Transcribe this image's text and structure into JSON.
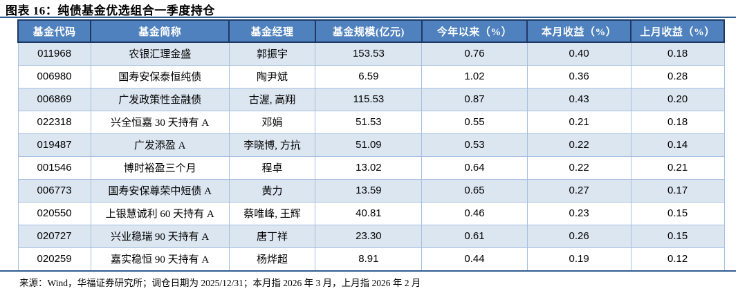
{
  "title": "图表 16：纯债基金优选组合一季度持仓",
  "table": {
    "columns": [
      "基金代码",
      "基金简称",
      "基金经理",
      "基金规模(亿元)",
      "今年以来（%）",
      "本月收益（%）",
      "上月收益（%）"
    ],
    "rows": [
      [
        "011968",
        "农银汇理金盛",
        "郭振宇",
        "153.53",
        "0.76",
        "0.40",
        "0.18"
      ],
      [
        "006980",
        "国寿安保泰恒纯债",
        "陶尹斌",
        "6.59",
        "1.02",
        "0.36",
        "0.28"
      ],
      [
        "006869",
        "广发政策性金融债",
        "古渥, 高翔",
        "115.53",
        "0.87",
        "0.43",
        "0.20"
      ],
      [
        "022318",
        "兴全恒嘉 30 天持有 A",
        "邓娟",
        "51.53",
        "0.55",
        "0.21",
        "0.18"
      ],
      [
        "019487",
        "广发添盈 A",
        "李晓博, 方抗",
        "51.09",
        "0.53",
        "0.22",
        "0.14"
      ],
      [
        "001546",
        "博时裕盈三个月",
        "程卓",
        "13.02",
        "0.64",
        "0.22",
        "0.21"
      ],
      [
        "006773",
        "国寿安保尊荣中短债 A",
        "黄力",
        "13.59",
        "0.65",
        "0.27",
        "0.17"
      ],
      [
        "020550",
        "上银慧诚利 60 天持有 A",
        "蔡唯峰, 王辉",
        "40.81",
        "0.46",
        "0.23",
        "0.15"
      ],
      [
        "020727",
        "兴业稳瑞 90 天持有 A",
        "唐丁祥",
        "23.30",
        "0.61",
        "0.26",
        "0.15"
      ],
      [
        "020259",
        "嘉实稳恒 90 天持有 A",
        "杨烨超",
        "8.91",
        "0.44",
        "0.19",
        "0.12"
      ]
    ]
  },
  "footer": {
    "source_note": "来源：Wind，华福证券研究所；调仓日期为 2025/12/31；本月指 2026 年 3 月，上月指 2026 年 2 月"
  },
  "colors": {
    "header-bg": "#4E81BD",
    "header-text": "#FFFFFF",
    "row-alt-bg": "#DCE6F1",
    "row-bg": "#FFFFFF",
    "border-dark": "#1F3864",
    "grid-light": "#A3BFDF",
    "rule-color": "#2E5B8F",
    "text-color": "#000000"
  }
}
